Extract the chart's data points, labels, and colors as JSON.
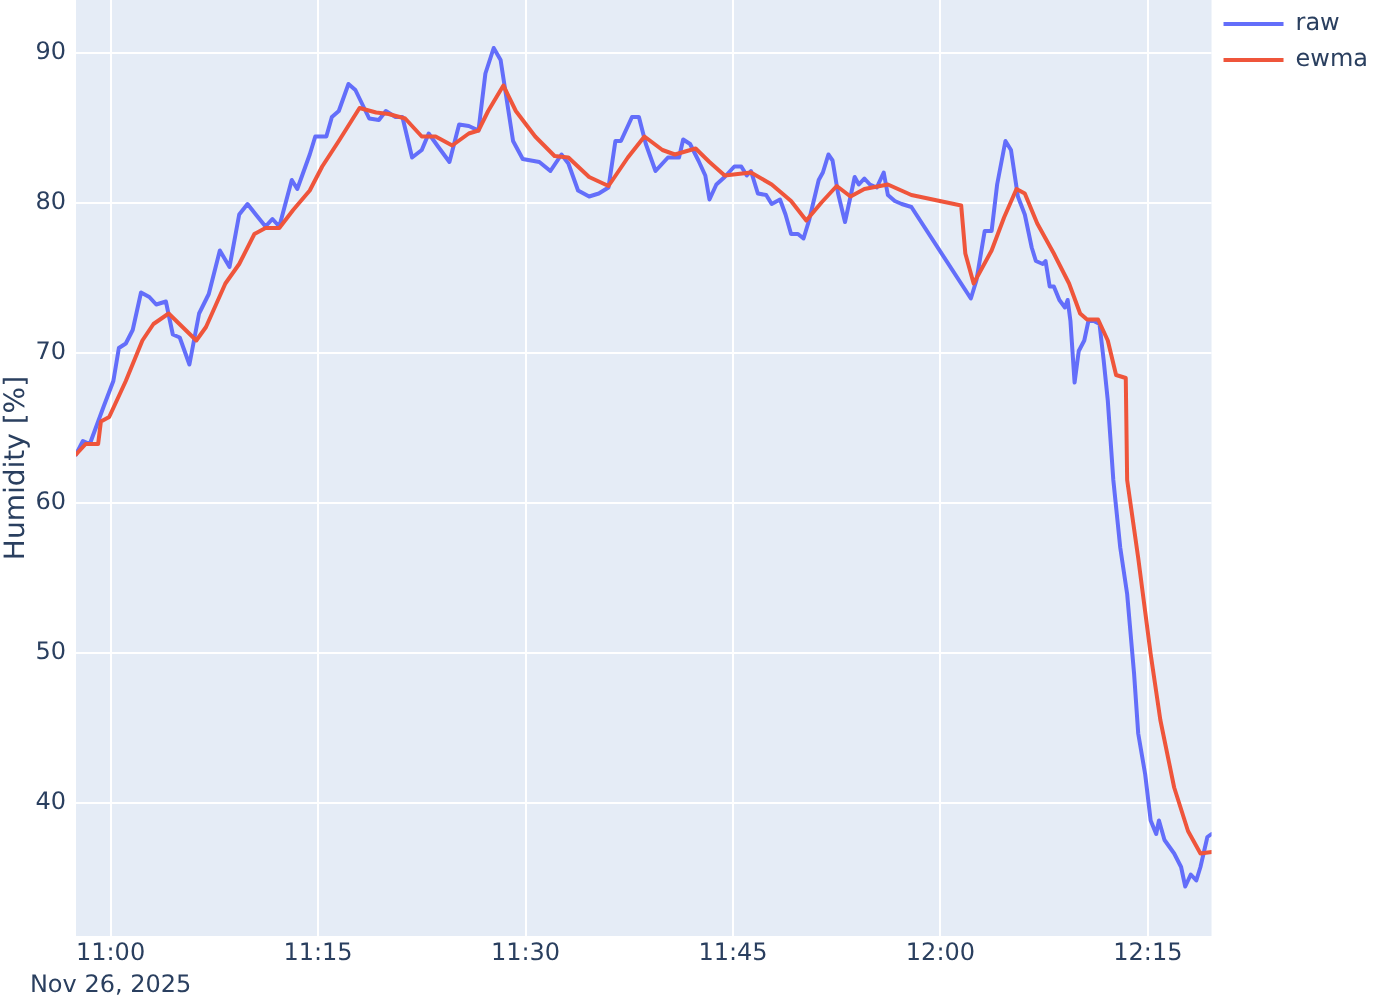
{
  "chart_data": {
    "type": "line",
    "ylabel": "Humidity [%]",
    "grid": true,
    "legend": "top right",
    "xlim": [
      "2025-11-26T10:57:30",
      "2025-11-26T12:19:36"
    ],
    "xticks": [
      {
        "value": "2025-11-26T11:00",
        "label": "11:00\nNov 26, 2025"
      },
      {
        "value": "2025-11-26T11:15",
        "label": "11:15"
      },
      {
        "value": "2025-11-26T11:30",
        "label": "11:30"
      },
      {
        "value": "2025-11-26T11:45",
        "label": "11:45"
      },
      {
        "value": "2025-11-26T12:00",
        "label": "12:00"
      },
      {
        "value": "2025-11-26T12:15",
        "label": "12:15"
      }
    ],
    "ylim": [
      31.1,
      93.5
    ],
    "yticks": [
      40,
      50,
      60,
      70,
      80,
      90
    ],
    "series": [
      {
        "name": "raw",
        "color": "#636efa",
        "x": [
          "2025-11-26T10:57:30",
          "2025-11-26T10:58:00",
          "2025-11-26T10:58:30",
          "2025-11-26T10:59:30",
          "2025-11-26T11:00:12",
          "2025-11-26T11:00:36",
          "2025-11-26T11:01:06",
          "2025-11-26T11:01:36",
          "2025-11-26T11:02:12",
          "2025-11-26T11:02:48",
          "2025-11-26T11:03:18",
          "2025-11-26T11:04:00",
          "2025-11-26T11:04:30",
          "2025-11-26T11:05:00",
          "2025-11-26T11:05:42",
          "2025-11-26T11:06:24",
          "2025-11-26T11:07:06",
          "2025-11-26T11:07:54",
          "2025-11-26T11:08:36",
          "2025-11-26T11:09:18",
          "2025-11-26T11:09:54",
          "2025-11-26T11:10:30",
          "2025-11-26T11:11:12",
          "2025-11-26T11:11:42",
          "2025-11-26T11:12:12",
          "2025-11-26T11:13:06",
          "2025-11-26T11:13:30",
          "2025-11-26T11:14:24",
          "2025-11-26T11:14:48",
          "2025-11-26T11:15:36",
          "2025-11-26T11:16:00",
          "2025-11-26T11:16:30",
          "2025-11-26T11:17:12",
          "2025-11-26T11:17:42",
          "2025-11-26T11:18:42",
          "2025-11-26T11:19:24",
          "2025-11-26T11:19:54",
          "2025-11-26T11:20:36",
          "2025-11-26T11:21:06",
          "2025-11-26T11:21:48",
          "2025-11-26T11:22:30",
          "2025-11-26T11:23:00",
          "2025-11-26T11:23:42",
          "2025-11-26T11:24:30",
          "2025-11-26T11:25:12",
          "2025-11-26T11:25:54",
          "2025-11-26T11:26:36",
          "2025-11-26T11:27:06",
          "2025-11-26T11:27:42",
          "2025-11-26T11:28:12",
          "2025-11-26T11:28:30",
          "2025-11-26T11:29:06",
          "2025-11-26T11:29:48",
          "2025-11-26T11:31:00",
          "2025-11-26T11:31:48",
          "2025-11-26T11:32:36",
          "2025-11-26T11:33:06",
          "2025-11-26T11:33:48",
          "2025-11-26T11:34:36",
          "2025-11-26T11:35:18",
          "2025-11-26T11:36:00",
          "2025-11-26T11:36:30",
          "2025-11-26T11:36:54",
          "2025-11-26T11:37:42",
          "2025-11-26T11:38:12",
          "2025-11-26T11:38:42",
          "2025-11-26T11:39:24",
          "2025-11-26T11:39:54",
          "2025-11-26T11:40:18",
          "2025-11-26T11:41:06",
          "2025-11-26T11:41:24",
          "2025-11-26T11:41:54",
          "2025-11-26T11:42:30",
          "2025-11-26T11:43:00",
          "2025-11-26T11:43:18",
          "2025-11-26T11:43:48",
          "2025-11-26T11:44:24",
          "2025-11-26T11:45:06",
          "2025-11-26T11:45:36",
          "2025-11-26T11:46:00",
          "2025-11-26T11:46:18",
          "2025-11-26T11:46:48",
          "2025-11-26T11:47:24",
          "2025-11-26T11:47:48",
          "2025-11-26T11:48:24",
          "2025-11-26T11:48:48",
          "2025-11-26T11:49:12",
          "2025-11-26T11:49:42",
          "2025-11-26T11:50:06",
          "2025-11-26T11:50:30",
          "2025-11-26T11:51:12",
          "2025-11-26T11:51:30",
          "2025-11-26T11:51:54",
          "2025-11-26T11:52:12",
          "2025-11-26T11:52:36",
          "2025-11-26T11:53:06",
          "2025-11-26T11:53:30",
          "2025-11-26T11:53:48",
          "2025-11-26T11:54:06",
          "2025-11-26T11:54:30",
          "2025-11-26T11:54:54",
          "2025-11-26T11:55:24",
          "2025-11-26T11:55:54",
          "2025-11-26T11:56:12",
          "2025-11-26T11:56:42",
          "2025-11-26T11:57:12",
          "2025-11-26T11:57:54",
          "2025-11-26T12:02:12",
          "2025-11-26T12:02:36",
          "2025-11-26T12:03:12",
          "2025-11-26T12:03:42",
          "2025-11-26T12:04:06",
          "2025-11-26T12:04:42",
          "2025-11-26T12:05:06",
          "2025-11-26T12:05:36",
          "2025-11-26T12:06:06",
          "2025-11-26T12:06:36",
          "2025-11-26T12:06:54",
          "2025-11-26T12:07:24",
          "2025-11-26T12:07:36",
          "2025-11-26T12:07:54",
          "2025-11-26T12:08:12",
          "2025-11-26T12:08:36",
          "2025-11-26T12:09:00",
          "2025-11-26T12:09:12",
          "2025-11-26T12:09:24",
          "2025-11-26T12:09:42",
          "2025-11-26T12:10:00",
          "2025-11-26T12:10:24",
          "2025-11-26T12:10:42",
          "2025-11-26T12:11:06",
          "2025-11-26T12:11:30",
          "2025-11-26T12:11:48",
          "2025-11-26T12:12:06",
          "2025-11-26T12:12:30",
          "2025-11-26T12:13:00",
          "2025-11-26T12:13:30",
          "2025-11-26T12:14:00",
          "2025-11-26T12:14:18",
          "2025-11-26T12:14:48",
          "2025-11-26T12:15:12",
          "2025-11-26T12:15:36",
          "2025-11-26T12:15:48",
          "2025-11-26T12:16:12",
          "2025-11-26T12:16:54",
          "2025-11-26T12:17:24",
          "2025-11-26T12:17:42",
          "2025-11-26T12:18:06",
          "2025-11-26T12:18:30",
          "2025-11-26T12:18:48",
          "2025-11-26T12:19:18",
          "2025-11-26T12:19:36"
        ],
        "values": [
          63.2,
          64.1,
          63.9,
          66.4,
          68.1,
          70.3,
          70.6,
          71.5,
          74.0,
          73.7,
          73.2,
          73.4,
          71.2,
          71.0,
          69.2,
          72.6,
          73.9,
          76.8,
          75.7,
          79.2,
          79.9,
          79.2,
          78.4,
          78.9,
          78.4,
          81.5,
          80.9,
          83.2,
          84.4,
          84.4,
          85.7,
          86.1,
          87.9,
          87.5,
          85.6,
          85.5,
          86.1,
          85.7,
          85.7,
          83.0,
          83.5,
          84.6,
          83.7,
          82.7,
          85.2,
          85.1,
          84.8,
          88.6,
          90.3,
          89.5,
          87.7,
          84.1,
          82.9,
          82.7,
          82.1,
          83.2,
          82.6,
          80.8,
          80.4,
          80.6,
          81.0,
          84.1,
          84.1,
          85.7,
          85.7,
          83.9,
          82.1,
          82.6,
          83.0,
          83.0,
          84.2,
          83.9,
          82.8,
          81.8,
          80.2,
          81.2,
          81.7,
          82.4,
          82.4,
          81.8,
          82.1,
          80.6,
          80.5,
          79.9,
          80.2,
          79.2,
          77.9,
          77.9,
          77.6,
          78.8,
          81.5,
          82.0,
          83.2,
          82.8,
          80.6,
          78.7,
          80.4,
          81.7,
          81.2,
          81.6,
          81.2,
          81.0,
          82.0,
          80.5,
          80.1,
          79.9,
          79.7,
          73.6,
          74.8,
          78.1,
          78.1,
          81.2,
          84.1,
          83.5,
          80.4,
          79.2,
          77.0,
          76.1,
          75.9,
          76.1,
          74.4,
          74.4,
          73.5,
          73.0,
          73.5,
          72.1,
          68.0,
          70.1,
          70.8,
          72.1,
          72.1,
          71.9,
          69.5,
          66.8,
          61.5,
          57.0,
          53.9,
          48.6,
          44.6,
          41.9,
          38.8,
          37.9,
          38.8,
          37.5,
          36.6,
          35.7,
          34.4,
          35.2,
          34.8,
          35.7,
          37.7,
          37.9
        ]
      },
      {
        "name": "ewma",
        "color": "#ef553b",
        "x": [
          "2025-11-26T10:57:30",
          "2025-11-26T10:58:12",
          "2025-11-26T10:59:06",
          "2025-11-26T10:59:18",
          "2025-11-26T10:59:54",
          "2025-11-26T11:01:06",
          "2025-11-26T11:02:18",
          "2025-11-26T11:03:06",
          "2025-11-26T11:04:12",
          "2025-11-26T11:05:12",
          "2025-11-26T11:06:12",
          "2025-11-26T11:06:54",
          "2025-11-26T11:08:18",
          "2025-11-26T11:09:18",
          "2025-11-26T11:10:24",
          "2025-11-26T11:11:12",
          "2025-11-26T11:12:12",
          "2025-11-26T11:13:12",
          "2025-11-26T11:14:24",
          "2025-11-26T11:15:18",
          "2025-11-26T11:16:30",
          "2025-11-26T11:18:00",
          "2025-11-26T11:19:12",
          "2025-11-26T11:20:06",
          "2025-11-26T11:21:18",
          "2025-11-26T11:22:30",
          "2025-11-26T11:23:30",
          "2025-11-26T11:24:42",
          "2025-11-26T11:25:54",
          "2025-11-26T11:26:36",
          "2025-11-26T11:27:18",
          "2025-11-26T11:28:24",
          "2025-11-26T11:29:18",
          "2025-11-26T11:30:42",
          "2025-11-26T11:32:06",
          "2025-11-26T11:33:06",
          "2025-11-26T11:34:36",
          "2025-11-26T11:36:00",
          "2025-11-26T11:37:24",
          "2025-11-26T11:38:36",
          "2025-11-26T11:39:54",
          "2025-11-26T11:40:48",
          "2025-11-26T11:42:18",
          "2025-11-26T11:43:18",
          "2025-11-26T11:44:24",
          "2025-11-26T11:46:18",
          "2025-11-26T11:47:48",
          "2025-11-26T11:49:12",
          "2025-11-26T11:50:18",
          "2025-11-26T11:51:24",
          "2025-11-26T11:52:30",
          "2025-11-26T11:53:30",
          "2025-11-26T11:54:30",
          "2025-11-26T11:56:12",
          "2025-11-26T11:57:54",
          "2025-11-26T12:01:30",
          "2025-11-26T12:01:48",
          "2025-11-26T12:02:24",
          "2025-11-26T12:03:42",
          "2025-11-26T12:04:36",
          "2025-11-26T12:05:30",
          "2025-11-26T12:06:06",
          "2025-11-26T12:07:00",
          "2025-11-26T12:08:12",
          "2025-11-26T12:09:18",
          "2025-11-26T12:10:06",
          "2025-11-26T12:10:36",
          "2025-11-26T12:11:24",
          "2025-11-26T12:12:06",
          "2025-11-26T12:12:42",
          "2025-11-26T12:13:24",
          "2025-11-26T12:13:30",
          "2025-11-26T12:14:18",
          "2025-11-26T12:15:12",
          "2025-11-26T12:15:54",
          "2025-11-26T12:16:54",
          "2025-11-26T12:17:54",
          "2025-11-26T12:18:48",
          "2025-11-26T12:19:36"
        ],
        "values": [
          63.2,
          63.9,
          63.9,
          65.4,
          65.7,
          68.1,
          70.8,
          71.9,
          72.6,
          71.7,
          70.8,
          71.7,
          74.6,
          75.9,
          77.9,
          78.3,
          78.3,
          79.5,
          80.8,
          82.4,
          84.1,
          86.3,
          86.0,
          85.9,
          85.6,
          84.4,
          84.4,
          83.8,
          84.6,
          84.8,
          86.1,
          87.8,
          86.1,
          84.4,
          83.1,
          83.0,
          81.7,
          81.1,
          83.0,
          84.4,
          83.5,
          83.2,
          83.6,
          82.7,
          81.8,
          82.0,
          81.2,
          80.1,
          78.8,
          80.0,
          81.1,
          80.4,
          80.9,
          81.2,
          80.5,
          79.8,
          76.6,
          74.6,
          76.8,
          79.0,
          80.9,
          80.6,
          78.6,
          76.6,
          74.6,
          72.6,
          72.2,
          72.2,
          70.8,
          68.5,
          68.3,
          61.5,
          56.3,
          49.9,
          45.5,
          41.0,
          38.1,
          36.6,
          36.7
        ]
      }
    ]
  }
}
